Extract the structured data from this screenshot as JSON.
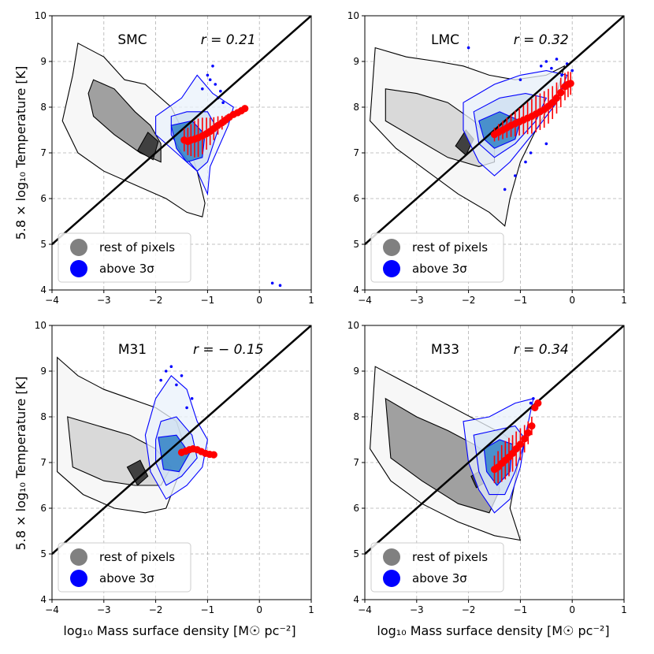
{
  "figure": {
    "ylabel": "5.8 × log₁₀ Temperature [K]",
    "xlabel": "log₁₀ Mass surface density [M☉ pc⁻²]"
  },
  "colors": {
    "blue": "#0000ff",
    "gray": "#808080",
    "red": "#ff0000",
    "fill_blue_dark": "#3a86c8",
    "fill_blue_light": "#c9dcf0",
    "fill_gray_dark": "#a0a0a0",
    "fill_gray_light": "#d9d9d9"
  },
  "chart_data": [
    {
      "type": "scatter",
      "title": "SMC",
      "r_label": "r = 0.21",
      "xlim": [
        -4,
        1
      ],
      "ylim": [
        4,
        10
      ],
      "xticks": [
        "−4",
        "−3",
        "−2",
        "−1",
        "0",
        "1"
      ],
      "yticks": [
        "4",
        "5",
        "6",
        "7",
        "8",
        "9",
        "10"
      ],
      "legend": [
        "rest of pixels",
        "above 3σ"
      ],
      "grid": true,
      "one_to_one_line": [
        [
          -4,
          5
        ],
        [
          1,
          10
        ]
      ],
      "gray_outer": [
        [
          -3.5,
          9.4
        ],
        [
          -3.0,
          9.1
        ],
        [
          -2.6,
          8.6
        ],
        [
          -2.2,
          8.5
        ],
        [
          -2.0,
          8.3
        ],
        [
          -1.7,
          8.0
        ],
        [
          -1.4,
          7.3
        ],
        [
          -1.2,
          6.6
        ],
        [
          -1.05,
          5.9
        ],
        [
          -1.1,
          5.6
        ],
        [
          -1.4,
          5.7
        ],
        [
          -1.8,
          6.0
        ],
        [
          -2.4,
          6.3
        ],
        [
          -3.0,
          6.6
        ],
        [
          -3.5,
          7.0
        ],
        [
          -3.8,
          7.7
        ],
        [
          -3.6,
          8.7
        ]
      ],
      "gray_mid": [
        [
          -3.2,
          8.6
        ],
        [
          -2.8,
          8.4
        ],
        [
          -2.4,
          7.9
        ],
        [
          -2.1,
          7.6
        ],
        [
          -1.9,
          7.2
        ],
        [
          -1.9,
          6.8
        ],
        [
          -2.3,
          7.0
        ],
        [
          -2.8,
          7.4
        ],
        [
          -3.2,
          7.8
        ],
        [
          -3.3,
          8.3
        ]
      ],
      "gray_core": [
        [
          -2.35,
          7.05
        ],
        [
          -2.15,
          7.45
        ],
        [
          -1.95,
          7.25
        ],
        [
          -2.05,
          6.85
        ]
      ],
      "blue_outer": [
        [
          -2.0,
          7.8
        ],
        [
          -1.5,
          8.2
        ],
        [
          -1.2,
          8.7
        ],
        [
          -0.9,
          8.3
        ],
        [
          -0.5,
          8.0
        ],
        [
          -0.6,
          7.6
        ],
        [
          -0.95,
          6.7
        ],
        [
          -1.0,
          6.1
        ],
        [
          -1.2,
          6.6
        ],
        [
          -1.6,
          7.0
        ],
        [
          -2.0,
          7.4
        ]
      ],
      "blue_mid": [
        [
          -1.7,
          7.8
        ],
        [
          -1.4,
          7.9
        ],
        [
          -1.0,
          7.9
        ],
        [
          -0.8,
          7.5
        ],
        [
          -1.0,
          6.8
        ],
        [
          -1.2,
          6.6
        ],
        [
          -1.5,
          7.0
        ],
        [
          -1.7,
          7.4
        ]
      ],
      "blue_core": [
        [
          -1.7,
          7.6
        ],
        [
          -1.3,
          7.7
        ],
        [
          -1.05,
          7.4
        ],
        [
          -1.1,
          6.9
        ],
        [
          -1.4,
          6.8
        ],
        [
          -1.6,
          7.1
        ]
      ],
      "red_x": [
        -1.45,
        -1.38,
        -1.32,
        -1.25,
        -1.18,
        -1.1,
        -1.02,
        -0.95,
        -0.88,
        -0.8,
        -0.72,
        -0.65,
        -0.58,
        -0.5,
        -0.42,
        -0.35,
        -0.28
      ],
      "red_y": [
        7.28,
        7.25,
        7.28,
        7.3,
        7.33,
        7.37,
        7.42,
        7.47,
        7.53,
        7.6,
        7.66,
        7.72,
        7.78,
        7.84,
        7.88,
        7.92,
        7.97
      ],
      "red_err": [
        0.25,
        0.3,
        0.35,
        0.4,
        0.42,
        0.4,
        0.35,
        0.3,
        0.25,
        0.2,
        0.15,
        0.1,
        0.08,
        0.06,
        0.05,
        0.04,
        0.03
      ],
      "blue_pts_x": [
        -1.0,
        -0.85,
        -0.9,
        -0.8,
        -0.95,
        -0.75,
        0.25,
        0.4,
        -1.1,
        -0.7
      ],
      "blue_pts_y": [
        8.7,
        8.5,
        8.9,
        8.2,
        8.6,
        8.35,
        4.15,
        4.1,
        8.4,
        8.1
      ]
    },
    {
      "type": "scatter",
      "title": "LMC",
      "r_label": "r = 0.32",
      "xlim": [
        -4,
        1
      ],
      "ylim": [
        4,
        10
      ],
      "xticks": [
        "−4",
        "−3",
        "−2",
        "−1",
        "0",
        "1"
      ],
      "yticks": [
        "4",
        "5",
        "6",
        "7",
        "8",
        "9",
        "10"
      ],
      "legend": [
        "rest of pixels",
        "above 3σ"
      ],
      "grid": true,
      "one_to_one_line": [
        [
          -4,
          5
        ],
        [
          1,
          10
        ]
      ],
      "gray_outer": [
        [
          -3.8,
          9.3
        ],
        [
          -3.2,
          9.1
        ],
        [
          -2.6,
          9.0
        ],
        [
          -2.1,
          8.9
        ],
        [
          -1.6,
          8.7
        ],
        [
          -1.1,
          8.6
        ],
        [
          -0.5,
          8.7
        ],
        [
          -0.15,
          8.9
        ],
        [
          -0.3,
          8.3
        ],
        [
          -0.7,
          7.5
        ],
        [
          -1.0,
          6.8
        ],
        [
          -1.2,
          6.0
        ],
        [
          -1.3,
          5.4
        ],
        [
          -1.6,
          5.7
        ],
        [
          -2.2,
          6.1
        ],
        [
          -2.8,
          6.6
        ],
        [
          -3.4,
          7.1
        ],
        [
          -3.9,
          7.7
        ]
      ],
      "gray_mid": [
        [
          -3.6,
          8.4
        ],
        [
          -3.0,
          8.3
        ],
        [
          -2.4,
          8.1
        ],
        [
          -1.9,
          7.7
        ],
        [
          -1.5,
          7.2
        ],
        [
          -1.5,
          6.8
        ],
        [
          -1.8,
          6.7
        ],
        [
          -2.4,
          6.9
        ],
        [
          -3.0,
          7.3
        ],
        [
          -3.6,
          7.7
        ]
      ],
      "gray_core": [
        [
          -2.25,
          7.15
        ],
        [
          -2.05,
          7.5
        ],
        [
          -1.9,
          7.3
        ],
        [
          -2.05,
          6.95
        ]
      ],
      "blue_outer": [
        [
          -2.1,
          8.1
        ],
        [
          -1.5,
          8.5
        ],
        [
          -1.0,
          8.7
        ],
        [
          -0.5,
          8.8
        ],
        [
          -0.1,
          8.7
        ],
        [
          -0.3,
          8.1
        ],
        [
          -0.7,
          7.5
        ],
        [
          -1.2,
          6.8
        ],
        [
          -1.5,
          6.5
        ],
        [
          -1.8,
          6.8
        ],
        [
          -2.1,
          7.5
        ]
      ],
      "blue_mid": [
        [
          -1.9,
          7.9
        ],
        [
          -1.4,
          8.2
        ],
        [
          -0.9,
          8.3
        ],
        [
          -0.5,
          8.2
        ],
        [
          -0.7,
          7.7
        ],
        [
          -1.1,
          7.2
        ],
        [
          -1.5,
          6.9
        ],
        [
          -1.8,
          7.2
        ]
      ],
      "blue_core": [
        [
          -1.8,
          7.7
        ],
        [
          -1.4,
          7.9
        ],
        [
          -1.0,
          7.7
        ],
        [
          -1.1,
          7.3
        ],
        [
          -1.5,
          7.1
        ],
        [
          -1.7,
          7.3
        ]
      ],
      "red_x": [
        -1.5,
        -1.42,
        -1.34,
        -1.26,
        -1.18,
        -1.1,
        -1.02,
        -0.94,
        -0.86,
        -0.78,
        -0.7,
        -0.62,
        -0.54,
        -0.46,
        -0.38,
        -0.3,
        -0.22,
        -0.14,
        -0.08,
        -0.03
      ],
      "red_y": [
        7.4,
        7.45,
        7.5,
        7.55,
        7.6,
        7.64,
        7.68,
        7.72,
        7.76,
        7.8,
        7.85,
        7.9,
        7.95,
        8.02,
        8.1,
        8.2,
        8.32,
        8.45,
        8.5,
        8.52
      ],
      "red_err": [
        0.15,
        0.18,
        0.2,
        0.22,
        0.25,
        0.28,
        0.3,
        0.32,
        0.35,
        0.38,
        0.4,
        0.4,
        0.4,
        0.38,
        0.36,
        0.34,
        0.32,
        0.3,
        0.28,
        0.25
      ],
      "blue_pts_x": [
        -0.5,
        -0.3,
        -0.1,
        0.0,
        -0.6,
        -0.4,
        -0.2,
        -1.1,
        -1.3,
        -0.9,
        -0.8,
        -0.5,
        -2.0,
        -1.0
      ],
      "blue_pts_y": [
        9.0,
        9.05,
        8.95,
        8.8,
        8.9,
        8.85,
        8.7,
        6.5,
        6.2,
        6.8,
        7.0,
        7.2,
        9.3,
        8.6
      ]
    },
    {
      "type": "scatter",
      "title": "M31",
      "r_label": "r = − 0.15",
      "xlim": [
        -4,
        1
      ],
      "ylim": [
        4,
        10
      ],
      "xticks": [
        "−4",
        "−3",
        "−2",
        "−1",
        "0",
        "1"
      ],
      "yticks": [
        "4",
        "5",
        "6",
        "7",
        "8",
        "9",
        "10"
      ],
      "legend": [
        "rest of pixels",
        "above 3σ"
      ],
      "grid": true,
      "one_to_one_line": [
        [
          -4,
          5
        ],
        [
          1,
          10
        ]
      ],
      "gray_outer": [
        [
          -3.9,
          9.3
        ],
        [
          -3.5,
          8.9
        ],
        [
          -3.0,
          8.6
        ],
        [
          -2.5,
          8.4
        ],
        [
          -2.0,
          8.2
        ],
        [
          -1.6,
          7.9
        ],
        [
          -1.4,
          7.2
        ],
        [
          -1.6,
          6.6
        ],
        [
          -1.8,
          6.0
        ],
        [
          -2.2,
          5.9
        ],
        [
          -2.8,
          6.0
        ],
        [
          -3.4,
          6.3
        ],
        [
          -3.9,
          6.8
        ]
      ],
      "gray_mid": [
        [
          -3.7,
          8.0
        ],
        [
          -3.1,
          7.8
        ],
        [
          -2.5,
          7.6
        ],
        [
          -2.0,
          7.3
        ],
        [
          -1.7,
          6.9
        ],
        [
          -1.9,
          6.5
        ],
        [
          -2.4,
          6.5
        ],
        [
          -3.0,
          6.6
        ],
        [
          -3.6,
          6.9
        ]
      ],
      "gray_core": [
        [
          -2.55,
          6.9
        ],
        [
          -2.3,
          7.05
        ],
        [
          -2.15,
          6.7
        ],
        [
          -2.35,
          6.5
        ]
      ],
      "blue_outer": [
        [
          -2.0,
          8.4
        ],
        [
          -1.7,
          8.9
        ],
        [
          -1.4,
          8.6
        ],
        [
          -1.2,
          7.9
        ],
        [
          -1.0,
          7.5
        ],
        [
          -1.1,
          6.9
        ],
        [
          -1.4,
          6.5
        ],
        [
          -1.8,
          6.2
        ],
        [
          -2.1,
          6.8
        ],
        [
          -2.2,
          7.6
        ]
      ],
      "blue_mid": [
        [
          -1.9,
          7.9
        ],
        [
          -1.6,
          8.0
        ],
        [
          -1.3,
          7.6
        ],
        [
          -1.2,
          7.1
        ],
        [
          -1.5,
          6.7
        ],
        [
          -1.8,
          6.5
        ],
        [
          -2.0,
          7.0
        ],
        [
          -2.0,
          7.5
        ]
      ],
      "blue_core": [
        [
          -1.95,
          7.55
        ],
        [
          -1.6,
          7.6
        ],
        [
          -1.35,
          7.2
        ],
        [
          -1.55,
          6.8
        ],
        [
          -1.85,
          6.85
        ]
      ],
      "red_x": [
        -1.5,
        -1.42,
        -1.35,
        -1.28,
        -1.2,
        -1.12,
        -1.04,
        -0.96,
        -0.88
      ],
      "red_y": [
        7.22,
        7.25,
        7.28,
        7.3,
        7.28,
        7.24,
        7.2,
        7.18,
        7.17
      ],
      "red_err": [
        0.08,
        0.08,
        0.07,
        0.07,
        0.06,
        0.06,
        0.05,
        0.05,
        0.05
      ],
      "blue_pts_x": [
        -1.9,
        -1.7,
        -1.5,
        -1.3,
        -1.6,
        -1.8,
        -1.4
      ],
      "blue_pts_y": [
        8.8,
        9.1,
        8.9,
        8.4,
        8.7,
        9.0,
        8.2
      ]
    },
    {
      "type": "scatter",
      "title": "M33",
      "r_label": "r = 0.34",
      "xlim": [
        -4,
        1
      ],
      "ylim": [
        4,
        10
      ],
      "xticks": [
        "−4",
        "−3",
        "−2",
        "−1",
        "0",
        "1"
      ],
      "yticks": [
        "4",
        "5",
        "6",
        "7",
        "8",
        "9",
        "10"
      ],
      "legend": [
        "rest of pixels",
        "above 3σ"
      ],
      "grid": true,
      "one_to_one_line": [
        [
          -4,
          5
        ],
        [
          1,
          10
        ]
      ],
      "gray_outer": [
        [
          -3.8,
          9.1
        ],
        [
          -3.3,
          8.8
        ],
        [
          -2.8,
          8.5
        ],
        [
          -2.3,
          8.2
        ],
        [
          -1.8,
          7.9
        ],
        [
          -1.3,
          7.6
        ],
        [
          -1.0,
          7.3
        ],
        [
          -1.1,
          6.6
        ],
        [
          -1.2,
          6.0
        ],
        [
          -1.0,
          5.3
        ],
        [
          -1.5,
          5.4
        ],
        [
          -2.2,
          5.7
        ],
        [
          -2.9,
          6.1
        ],
        [
          -3.5,
          6.6
        ],
        [
          -3.9,
          7.3
        ]
      ],
      "gray_mid": [
        [
          -3.6,
          8.4
        ],
        [
          -3.0,
          8.0
        ],
        [
          -2.4,
          7.7
        ],
        [
          -1.9,
          7.4
        ],
        [
          -1.5,
          7.1
        ],
        [
          -1.4,
          6.4
        ],
        [
          -1.6,
          5.9
        ],
        [
          -2.2,
          6.1
        ],
        [
          -2.9,
          6.6
        ],
        [
          -3.5,
          7.1
        ]
      ],
      "gray_core": [
        [
          -1.95,
          6.7
        ],
        [
          -1.8,
          6.8
        ],
        [
          -1.7,
          6.55
        ],
        [
          -1.85,
          6.45
        ]
      ],
      "blue_outer": [
        [
          -2.1,
          7.9
        ],
        [
          -1.6,
          8.0
        ],
        [
          -1.1,
          8.3
        ],
        [
          -0.75,
          8.4
        ],
        [
          -0.9,
          7.6
        ],
        [
          -1.0,
          6.9
        ],
        [
          -1.2,
          6.2
        ],
        [
          -1.5,
          5.9
        ],
        [
          -1.8,
          6.4
        ],
        [
          -2.0,
          7.0
        ]
      ],
      "blue_mid": [
        [
          -1.9,
          7.6
        ],
        [
          -1.5,
          7.7
        ],
        [
          -1.1,
          7.8
        ],
        [
          -0.9,
          7.5
        ],
        [
          -1.1,
          6.8
        ],
        [
          -1.3,
          6.3
        ],
        [
          -1.6,
          6.3
        ],
        [
          -1.8,
          6.8
        ]
      ],
      "blue_core": [
        [
          -1.7,
          7.3
        ],
        [
          -1.4,
          7.5
        ],
        [
          -1.15,
          7.4
        ],
        [
          -1.2,
          6.8
        ],
        [
          -1.45,
          6.5
        ],
        [
          -1.65,
          6.8
        ]
      ],
      "red_x": [
        -1.5,
        -1.43,
        -1.36,
        -1.29,
        -1.22,
        -1.15,
        -1.08,
        -1.0,
        -0.92,
        -0.85,
        -0.78,
        -0.72,
        -0.66
      ],
      "red_y": [
        6.85,
        6.9,
        6.98,
        7.05,
        7.12,
        7.2,
        7.3,
        7.4,
        7.52,
        7.65,
        7.8,
        8.2,
        8.3
      ],
      "red_err": [
        0.3,
        0.35,
        0.4,
        0.42,
        0.42,
        0.4,
        0.38,
        0.35,
        0.3,
        0.25,
        0.2,
        0.06,
        0.05
      ],
      "blue_pts_x": [
        -0.8,
        -0.75,
        -0.7
      ],
      "blue_pts_y": [
        8.3,
        8.4,
        8.2
      ]
    }
  ]
}
